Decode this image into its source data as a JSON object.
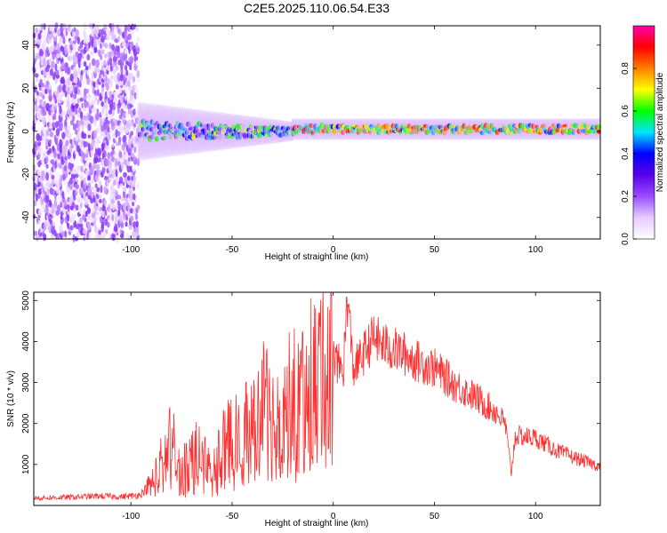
{
  "title": "C2E5.2025.110.06.54.E33",
  "chart_data": [
    {
      "type": "heatmap",
      "title": "C2E5.2025.110.06.54.E33",
      "xlabel": "Height of straight line (km)",
      "ylabel": "Frequency (Hz)",
      "xlim": [
        -148,
        132
      ],
      "ylim": [
        -50,
        49
      ],
      "xticks": [
        -100,
        -50,
        0,
        50,
        100
      ],
      "yticks": [
        -40,
        -20,
        0,
        20,
        40
      ],
      "colorbar": {
        "label": "Normalized spectral amplitude",
        "range": [
          0,
          1
        ],
        "ticks": [
          0.0,
          0.2,
          0.4,
          0.6,
          0.8
        ],
        "tick_labels": [
          "0.0",
          "0.2",
          "0.4",
          "0.6",
          "0.8"
        ],
        "colormap": [
          "#ffffff",
          "#e6ccff",
          "#9a4dff",
          "#5a00e6",
          "#0000ff",
          "#00e5ff",
          "#00ff00",
          "#ffff00",
          "#ff7f00",
          "#ff0000",
          "#ff00aa"
        ]
      },
      "regions": [
        {
          "x_range": [
            -148,
            -96
          ],
          "freq_range": [
            -50,
            49
          ],
          "mean_amplitude": 0.1,
          "description": "noise"
        },
        {
          "x_range": [
            -96,
            -20
          ],
          "freq_center": 0,
          "amplitude_range": [
            0.1,
            0.7
          ]
        },
        {
          "x_range": [
            -20,
            132
          ],
          "freq_center": 1,
          "amplitude_range": [
            0.4,
            0.9
          ]
        }
      ]
    },
    {
      "type": "line",
      "xlabel": "Height of straight line (km)",
      "ylabel": "SNR (10 * v/v)",
      "xlim": [
        -148,
        132
      ],
      "ylim": [
        0,
        5200
      ],
      "xticks": [
        -100,
        -50,
        0,
        50,
        100
      ],
      "yticks": [
        1000,
        2000,
        3000,
        4000,
        5000
      ],
      "color": "#ff3030",
      "series": [
        {
          "x": [
            -148,
            -130,
            -115,
            -105,
            -96,
            -90,
            -85,
            -80,
            -75,
            -70,
            -60,
            -50,
            -40,
            -35,
            -30,
            -20,
            -10,
            -5,
            0,
            5,
            7,
            10,
            15,
            20,
            25,
            30,
            35,
            40,
            50,
            60,
            70,
            80,
            85,
            88,
            90,
            100,
            110,
            120,
            132
          ],
          "y": [
            180,
            200,
            230,
            210,
            250,
            500,
            1000,
            1500,
            700,
            1300,
            1000,
            1600,
            1800,
            2400,
            2100,
            2500,
            3100,
            3300,
            3600,
            3300,
            5100,
            3300,
            3700,
            4100,
            3900,
            3800,
            3700,
            3550,
            3350,
            2950,
            2650,
            2300,
            2000,
            800,
            1700,
            1650,
            1350,
            1150,
            950
          ]
        }
      ]
    }
  ]
}
